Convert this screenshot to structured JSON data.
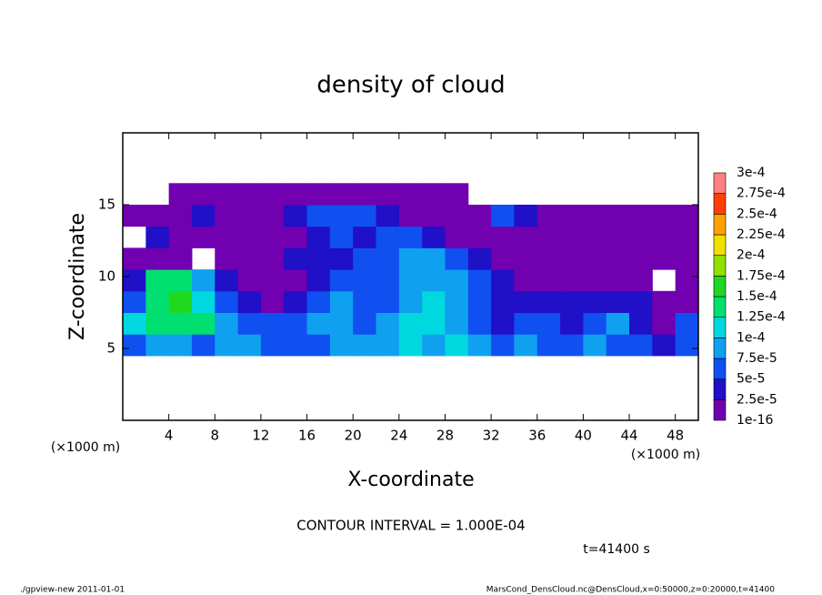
{
  "chart_data": {
    "type": "heatmap",
    "title": "density of cloud",
    "x_label": "X-coordinate",
    "y_label": "Z-coordinate",
    "x_unit": "(×1000 m)",
    "y_unit": "(×1000 m)",
    "xlim": [
      0,
      50
    ],
    "ylim": [
      0,
      20
    ],
    "xticks": [
      4,
      8,
      12,
      16,
      20,
      24,
      28,
      32,
      36,
      40,
      44,
      48
    ],
    "yticks": [
      5,
      10,
      15
    ],
    "field": {
      "x_edges": [
        0,
        2,
        4,
        6,
        8,
        10,
        12,
        14,
        16,
        18,
        20,
        22,
        24,
        26,
        28,
        30,
        32,
        34,
        36,
        38,
        40,
        42,
        44,
        46,
        48,
        50
      ],
      "z_edges": [
        4.5,
        6,
        7.5,
        9,
        10.5,
        12,
        13.5,
        15,
        16.5
      ],
      "values": [
        [
          6e-05,
          8.5e-05,
          8.5e-05,
          6e-05,
          8.5e-05,
          8.5e-05,
          6e-05,
          6e-05,
          6e-05,
          8.5e-05,
          8.5e-05,
          8.5e-05,
          0.00011,
          8.5e-05,
          0.00011,
          8.5e-05,
          6e-05,
          8.5e-05,
          6e-05,
          6e-05,
          8.5e-05,
          6e-05,
          6e-05,
          3.5e-05,
          6e-05
        ],
        [
          0.00011,
          0.00014,
          0.00014,
          0.00014,
          8.5e-05,
          6e-05,
          6e-05,
          6e-05,
          8.5e-05,
          8.5e-05,
          6e-05,
          8.5e-05,
          0.00011,
          0.00011,
          8.5e-05,
          6e-05,
          3.5e-05,
          6e-05,
          6e-05,
          3.5e-05,
          6e-05,
          8.5e-05,
          3.5e-05,
          1e-05,
          6e-05
        ],
        [
          6e-05,
          0.00014,
          0.00016,
          0.00011,
          6e-05,
          3.5e-05,
          1e-05,
          3.5e-05,
          6e-05,
          8.5e-05,
          6e-05,
          6e-05,
          8.5e-05,
          0.00011,
          8.5e-05,
          6e-05,
          3.5e-05,
          3.5e-05,
          3.5e-05,
          3.5e-05,
          3.5e-05,
          3.5e-05,
          3.5e-05,
          1e-05,
          1e-05
        ],
        [
          3.5e-05,
          0.00014,
          0.00014,
          8.5e-05,
          3.5e-05,
          1e-05,
          1e-05,
          1e-05,
          3.5e-05,
          6e-05,
          6e-05,
          6e-05,
          8.5e-05,
          8.5e-05,
          8.5e-05,
          6e-05,
          3.5e-05,
          1e-05,
          1e-05,
          1e-05,
          1e-05,
          1e-05,
          1e-05,
          null,
          1e-05
        ],
        [
          1e-05,
          1e-05,
          1e-05,
          null,
          1e-05,
          1e-05,
          1e-05,
          3.5e-05,
          3.5e-05,
          3.5e-05,
          6e-05,
          6e-05,
          8.5e-05,
          8.5e-05,
          6e-05,
          3.5e-05,
          1e-05,
          1e-05,
          1e-05,
          1e-05,
          1e-05,
          1e-05,
          1e-05,
          1e-05,
          1e-05
        ],
        [
          null,
          3.5e-05,
          1e-05,
          1e-05,
          1e-05,
          1e-05,
          1e-05,
          1e-05,
          3.5e-05,
          6e-05,
          3.5e-05,
          6e-05,
          6e-05,
          3.5e-05,
          1e-05,
          1e-05,
          1e-05,
          1e-05,
          1e-05,
          1e-05,
          1e-05,
          1e-05,
          1e-05,
          1e-05,
          1e-05
        ],
        [
          1e-05,
          1e-05,
          1e-05,
          3.5e-05,
          1e-05,
          1e-05,
          1e-05,
          3.5e-05,
          6e-05,
          6e-05,
          6e-05,
          3.5e-05,
          1e-05,
          1e-05,
          1e-05,
          1e-05,
          6e-05,
          3.5e-05,
          1e-05,
          1e-05,
          1e-05,
          1e-05,
          1e-05,
          1e-05,
          1e-05
        ],
        [
          null,
          null,
          1e-05,
          1e-05,
          1e-05,
          1e-05,
          1e-05,
          1e-05,
          1e-05,
          1e-05,
          1e-05,
          1e-05,
          1e-05,
          1e-05,
          1e-05,
          null,
          null,
          null,
          null,
          null,
          null,
          null,
          null,
          null,
          null
        ]
      ]
    },
    "levels": [
      {
        "value": 1e-16,
        "label": "1e-16"
      },
      {
        "value": 2.5e-05,
        "label": "2.5e-5"
      },
      {
        "value": 5e-05,
        "label": "5e-5"
      },
      {
        "value": 7.5e-05,
        "label": "7.5e-5"
      },
      {
        "value": 0.0001,
        "label": "1e-4"
      },
      {
        "value": 0.000125,
        "label": "1.25e-4"
      },
      {
        "value": 0.00015,
        "label": "1.5e-4"
      },
      {
        "value": 0.000175,
        "label": "1.75e-4"
      },
      {
        "value": 0.0002,
        "label": "2e-4"
      },
      {
        "value": 0.000225,
        "label": "2.25e-4"
      },
      {
        "value": 0.00025,
        "label": "2.5e-4"
      },
      {
        "value": 0.000275,
        "label": "2.75e-4"
      },
      {
        "value": 0.0003,
        "label": "3e-4"
      }
    ],
    "colors": [
      "#7000b0",
      "#2010c8",
      "#1050f0",
      "#10a0f0",
      "#00d8e0",
      "#00e070",
      "#20d820",
      "#90e000",
      "#f0e000",
      "#ffa000",
      "#ff4000",
      "#ff8080"
    ],
    "contour_note": "CONTOUR INTERVAL = 1.000E-04",
    "time_label": "t=41400 s",
    "footer_left": "./gpview-new   2011-01-01",
    "footer_right": "MarsCond_DensCloud.nc@DensCloud,x=0:50000,z=0:20000,t=41400"
  }
}
